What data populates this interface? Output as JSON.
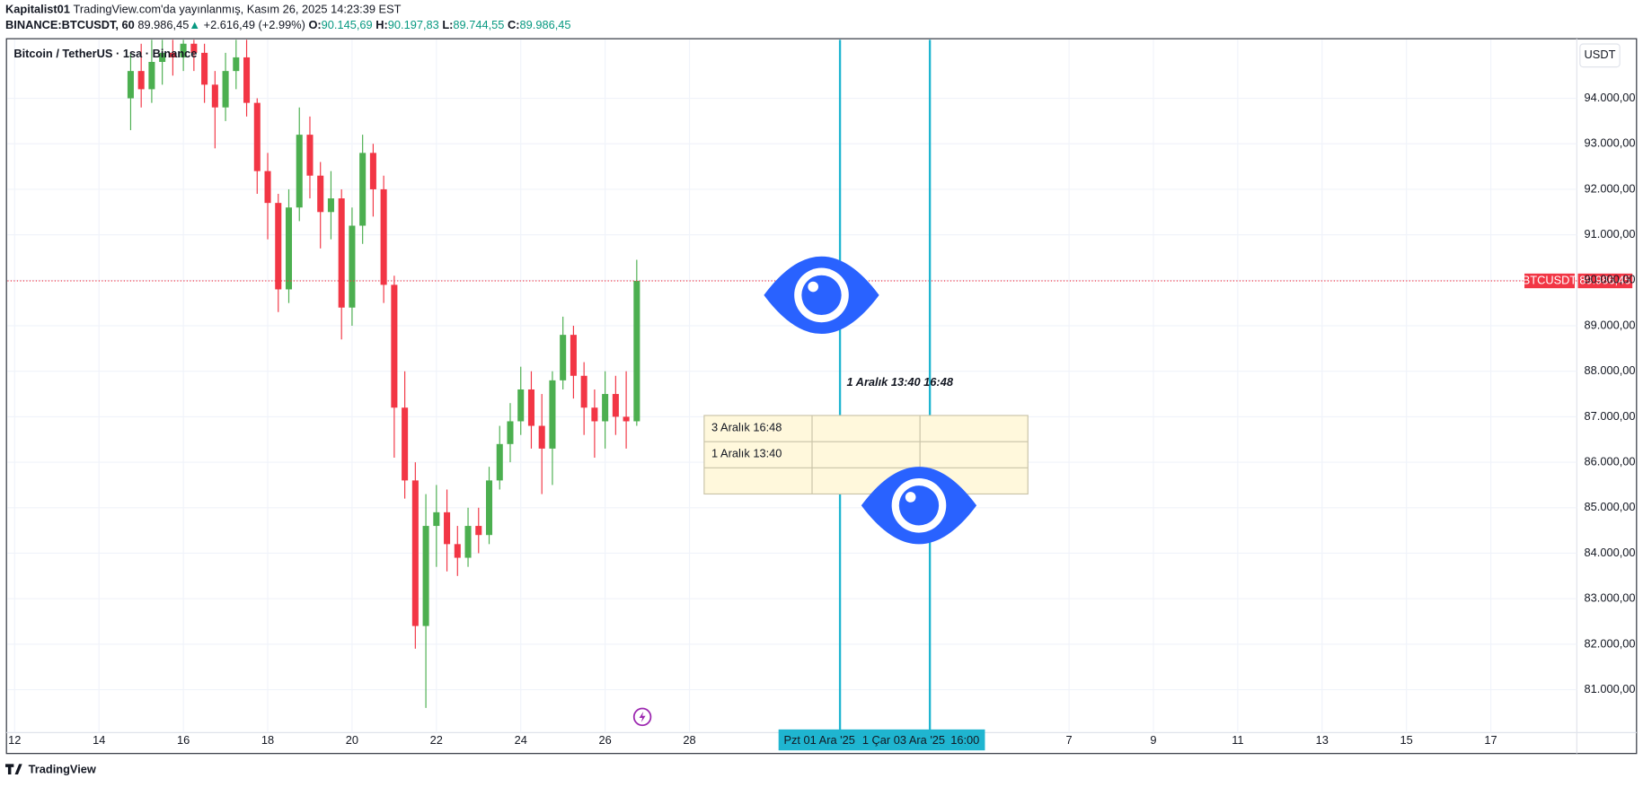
{
  "header": {
    "author": "Kapitalist01",
    "published": "TradingView.com'da yayınlanmış, Kasım 26, 2025 14:23:39 EST",
    "symbol": "BINANCE:BTCUSDT, 60",
    "price": "89.986,45",
    "arrow": "▲",
    "change": "+2.616,49 (+2.99%)",
    "o_label": "O:",
    "o": "90.145,69",
    "h_label": "H:",
    "h": "90.197,83",
    "l_label": "L:",
    "l": "89.744,55",
    "c_label": "C:",
    "c": "89.986,45"
  },
  "legend": "Bitcoin / TetherUS · 1sa · Binance",
  "currency": "USDT",
  "footer": "TradingView",
  "chart_data": {
    "type": "candlestick",
    "up_color": "#4caf50",
    "down_color": "#f23645",
    "x": [
      14.75,
      15,
      15.25,
      15.5,
      15.75,
      16,
      16.25,
      16.5,
      16.75,
      17,
      17.25,
      17.5,
      17.75,
      18,
      18.25,
      18.5,
      18.75,
      19,
      19.25,
      19.5,
      19.75,
      20,
      20.25,
      20.5,
      20.75,
      21,
      21.25,
      21.5,
      21.75,
      22,
      22.25,
      22.5,
      22.75,
      23,
      23.25,
      23.5,
      23.75,
      24,
      24.25,
      24.5,
      24.75,
      25,
      25.25,
      25.5,
      25.75,
      26,
      26.25,
      26.5,
      26.75
    ],
    "open": [
      94000,
      94600,
      94200,
      94800,
      95000,
      94900,
      95200,
      95000,
      94300,
      93800,
      94600,
      94900,
      93900,
      92400,
      91700,
      89800,
      91600,
      93200,
      92300,
      91500,
      91800,
      89400,
      91200,
      92800,
      92000,
      89900,
      87200,
      85600,
      82400,
      84600,
      84900,
      84200,
      83900,
      84600,
      84400,
      85600,
      86400,
      86900,
      87600,
      86800,
      86300,
      87800,
      88800,
      87900,
      87200,
      86900,
      87500,
      87000,
      86900
    ],
    "high": [
      95000,
      95200,
      95300,
      95300,
      95300,
      95300,
      95300,
      95200,
      94600,
      95000,
      95300,
      95300,
      94000,
      92800,
      91900,
      92000,
      93800,
      93600,
      92600,
      92400,
      92000,
      91600,
      93200,
      93000,
      92300,
      90100,
      88000,
      86000,
      85300,
      85500,
      85400,
      84600,
      85000,
      85000,
      85900,
      86800,
      87300,
      88100,
      88000,
      87500,
      88000,
      89200,
      89000,
      88200,
      87600,
      88000,
      87900,
      88000,
      90450
    ],
    "low": [
      93300,
      93800,
      93900,
      94300,
      94500,
      94600,
      94600,
      93900,
      92900,
      93500,
      94200,
      93600,
      91900,
      90900,
      89300,
      89500,
      91300,
      91800,
      90700,
      90900,
      88700,
      89000,
      90800,
      91400,
      89500,
      86100,
      85200,
      81900,
      80600,
      83700,
      83600,
      83500,
      83700,
      84000,
      84200,
      85400,
      86000,
      86600,
      86300,
      85300,
      85500,
      87600,
      87400,
      86600,
      86100,
      86300,
      86600,
      86300,
      86800
    ],
    "close": [
      94600,
      94200,
      94800,
      95000,
      94900,
      95200,
      95000,
      94300,
      93800,
      94600,
      94900,
      93900,
      92400,
      91700,
      89800,
      91600,
      93200,
      92300,
      91500,
      91800,
      89400,
      91200,
      92800,
      92000,
      89900,
      87200,
      85600,
      82400,
      84600,
      84900,
      84200,
      83900,
      84600,
      84400,
      85600,
      86400,
      86900,
      87600,
      86800,
      86300,
      87800,
      88800,
      87900,
      87200,
      86900,
      87500,
      87000,
      86900,
      89986.45
    ],
    "xlim": [
      11.83,
      49.04
    ],
    "xticks": [
      12,
      14,
      16,
      18,
      20,
      22,
      24,
      26,
      28,
      {
        "value": 37,
        "label": "7"
      },
      {
        "value": 39,
        "label": "9"
      },
      {
        "value": 41,
        "label": "11"
      },
      {
        "value": 43,
        "label": "13"
      },
      {
        "value": 45,
        "label": "15"
      },
      {
        "value": 47,
        "label": "17"
      }
    ],
    "ylim": [
      80057,
      95287
    ],
    "yticks": [
      {
        "value": 81000,
        "label": "81.000,00"
      },
      {
        "value": 82000,
        "label": "82.000,00"
      },
      {
        "value": 83000,
        "label": "83.000,00"
      },
      {
        "value": 84000,
        "label": "84.000,00"
      },
      {
        "value": 85000,
        "label": "85.000,00"
      },
      {
        "value": 86000,
        "label": "86.000,00"
      },
      {
        "value": 87000,
        "label": "87.000,00"
      },
      {
        "value": 88000,
        "label": "88.000,00"
      },
      {
        "value": 89000,
        "label": "89.000,00"
      },
      {
        "value": 90000,
        "label": "90.000,00"
      },
      {
        "value": 91000,
        "label": "91.000,00"
      },
      {
        "value": 92000,
        "label": "92.000,00"
      },
      {
        "value": 93000,
        "label": "93.000,00"
      },
      {
        "value": 94000,
        "label": "94.000,00"
      }
    ],
    "grid": true,
    "last_price": {
      "value": 89986.45,
      "label": "89.986,45",
      "symbol": "BTCUSDT",
      "color": "#f23645"
    },
    "vertical_lines": {
      "color": "#1fb5d0",
      "x": [
        31.569,
        33.7
      ]
    },
    "crosshair_labels": [
      "Pzt 01 Ara '25",
      "1",
      "Çar 03 Ara '25",
      "16:00"
    ],
    "annotation": "1 Aralık 13:40  16:48"
  },
  "table": {
    "rows": [
      [
        "3 Aralık 16:48"
      ],
      [
        "1 Aralık 13:40"
      ]
    ]
  }
}
